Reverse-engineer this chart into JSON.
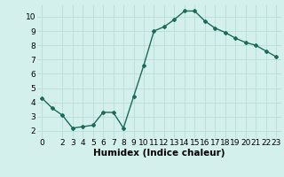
{
  "x": [
    0,
    1,
    2,
    3,
    4,
    5,
    6,
    7,
    8,
    9,
    10,
    11,
    12,
    13,
    14,
    15,
    16,
    17,
    18,
    19,
    20,
    21,
    22,
    23
  ],
  "y": [
    4.3,
    3.6,
    3.1,
    2.2,
    2.3,
    2.4,
    3.3,
    3.3,
    2.2,
    4.4,
    6.6,
    9.0,
    9.3,
    9.8,
    10.4,
    10.4,
    9.7,
    9.2,
    8.9,
    8.5,
    8.2,
    8.0,
    7.6,
    7.2
  ],
  "line_color": "#1a6b5a",
  "bg_color": "#d4f0ec",
  "grid_color": "#b8dcd8",
  "xlabel": "Humidex (Indice chaleur)",
  "xlim": [
    -0.5,
    23.5
  ],
  "ylim": [
    1.5,
    10.8
  ],
  "yticks": [
    2,
    3,
    4,
    5,
    6,
    7,
    8,
    9,
    10
  ],
  "xticks": [
    0,
    2,
    3,
    4,
    5,
    6,
    7,
    8,
    9,
    10,
    11,
    12,
    13,
    14,
    15,
    16,
    17,
    18,
    19,
    20,
    21,
    22,
    23
  ],
  "marker": "D",
  "markersize": 2.0,
  "linewidth": 1.0,
  "xlabel_fontsize": 7.5,
  "tick_fontsize": 6.5
}
